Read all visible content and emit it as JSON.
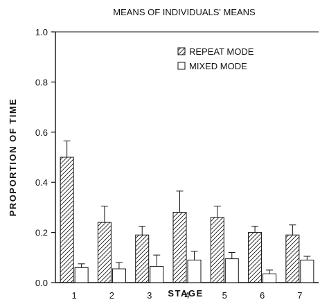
{
  "chart_data": {
    "type": "bar",
    "title": "MEANS OF INDIVIDUALS' MEANS",
    "xlabel": "STAGE",
    "ylabel": "PROPORTION OF TIME",
    "categories": [
      "1",
      "2",
      "3",
      "4",
      "5",
      "6",
      "7"
    ],
    "ylim": [
      0,
      1.0
    ],
    "yticks": [
      "0.0",
      "0.2",
      "0.4",
      "0.6",
      "0.8",
      "1.0"
    ],
    "grid": false,
    "legend_position": "top-right",
    "series": [
      {
        "name": "REPEAT MODE",
        "pattern": "hatched",
        "values": [
          0.5,
          0.24,
          0.19,
          0.28,
          0.26,
          0.2,
          0.19
        ],
        "errors": [
          0.065,
          0.065,
          0.035,
          0.085,
          0.045,
          0.025,
          0.04
        ]
      },
      {
        "name": "MIXED MODE",
        "pattern": "open",
        "values": [
          0.06,
          0.055,
          0.065,
          0.09,
          0.095,
          0.035,
          0.09
        ],
        "errors": [
          0.015,
          0.025,
          0.045,
          0.035,
          0.025,
          0.015,
          0.015
        ]
      }
    ],
    "colors": {
      "ink": "#111111",
      "background": "#ffffff"
    }
  }
}
